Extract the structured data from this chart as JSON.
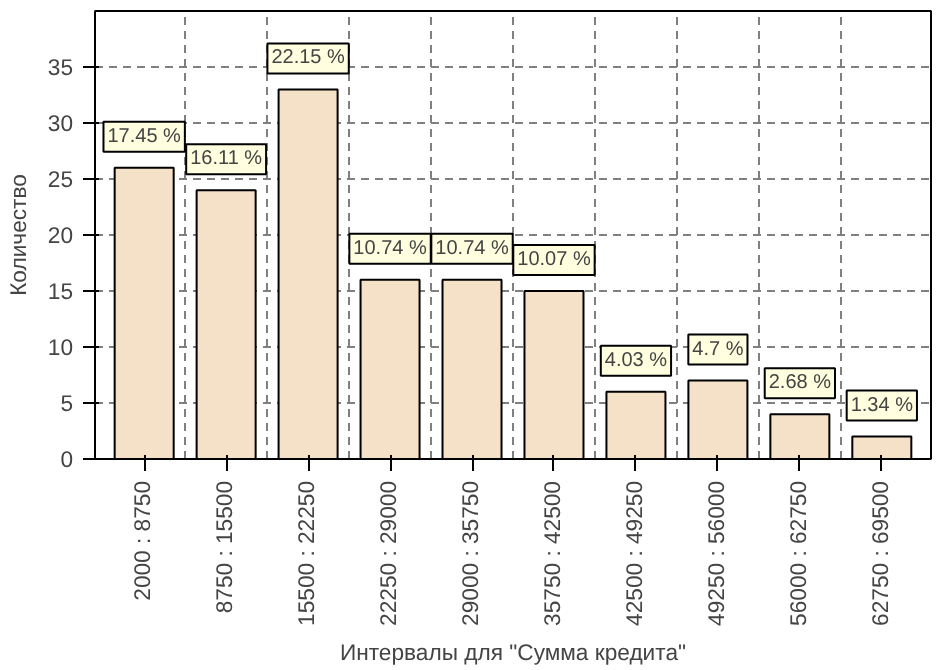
{
  "chart_data": {
    "type": "bar",
    "xlabel": "Интервалы для \"Сумма кредита\"",
    "ylabel": "Количество",
    "categories": [
      "2000 : 8750",
      "8750 : 15500",
      "15500 : 22250",
      "22250 : 29000",
      "29000 : 35750",
      "35750 : 42500",
      "42500 : 49250",
      "49250 : 56000",
      "56000 : 62750",
      "62750 : 69500"
    ],
    "values": [
      26,
      24,
      33,
      16,
      16,
      15,
      6,
      7,
      4,
      2
    ],
    "annotations": [
      {
        "text": "17.45 %",
        "x": "2000 : 8750",
        "y": 26
      },
      {
        "text": "16.11 %",
        "x": "8750 : 15500",
        "y": 24
      },
      {
        "text": "22.15 %",
        "x": "15500 : 22250",
        "y": 33
      },
      {
        "text": "10.74 %",
        "x": "22250 : 29000",
        "y": 16
      },
      {
        "text": "10.74 %",
        "x": "29000 : 35750",
        "y": 16
      },
      {
        "text": "10.07 %",
        "x": "35750 : 42500",
        "y": 15
      },
      {
        "text": "4.03 %",
        "x": "42500 : 49250",
        "y": 6
      },
      {
        "text": "4.7 %",
        "x": "49250 : 56000",
        "y": 7
      },
      {
        "text": "2.68 %",
        "x": "56000 : 62750",
        "y": 4
      },
      {
        "text": "1.34 %",
        "x": "62750 : 69500",
        "y": 2
      }
    ],
    "color": "#f5e0c8",
    "ylim": [
      0,
      40
    ],
    "yticks": [
      0,
      5,
      10,
      15,
      20,
      25,
      30,
      35
    ],
    "grid": true
  }
}
